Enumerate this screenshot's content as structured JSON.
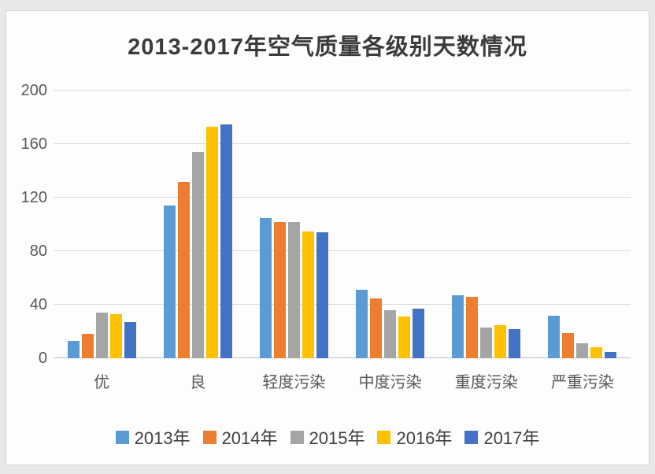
{
  "chart_data": {
    "type": "bar",
    "title": "2013-2017年空气质量各级别天数情况",
    "categories": [
      "优",
      "良",
      "轻度污染",
      "中度污染",
      "重度污染",
      "严重污染"
    ],
    "series": [
      {
        "name": "2013年",
        "color": "#5B9BD5",
        "values": [
          13,
          114,
          105,
          51,
          47,
          32
        ]
      },
      {
        "name": "2014年",
        "color": "#ED7D31",
        "values": [
          18,
          132,
          102,
          45,
          46,
          19
        ]
      },
      {
        "name": "2015年",
        "color": "#A5A5A5",
        "values": [
          34,
          154,
          102,
          36,
          23,
          11
        ]
      },
      {
        "name": "2016年",
        "color": "#FFC000",
        "values": [
          33,
          173,
          95,
          31,
          25,
          8
        ]
      },
      {
        "name": "2017年",
        "color": "#4472C4",
        "values": [
          27,
          175,
          94,
          37,
          22,
          5
        ]
      }
    ],
    "ylim": [
      0,
      200
    ],
    "yticks": [
      0,
      40,
      80,
      120,
      160,
      200
    ],
    "xlabel": "",
    "ylabel": "",
    "grid": true,
    "legend_position": "bottom"
  }
}
